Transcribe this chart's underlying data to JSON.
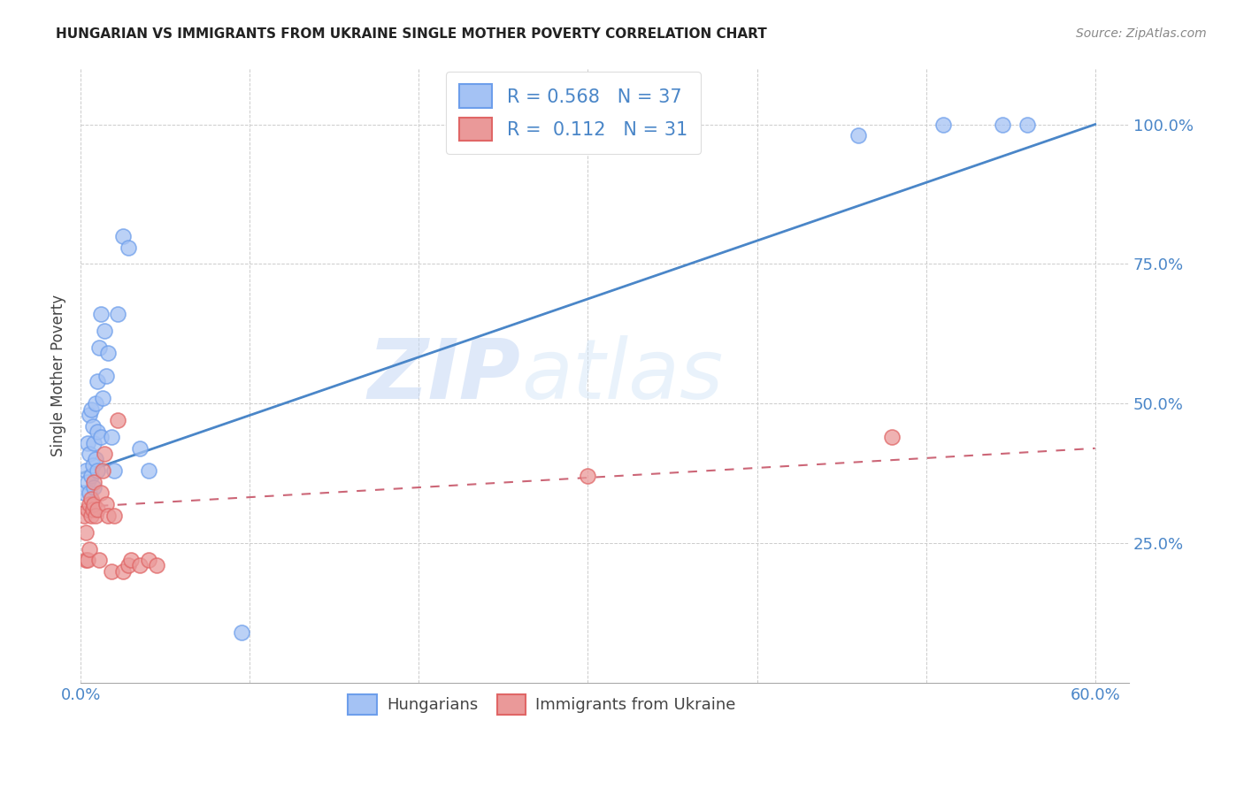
{
  "title": "HUNGARIAN VS IMMIGRANTS FROM UKRAINE SINGLE MOTHER POVERTY CORRELATION CHART",
  "source": "Source: ZipAtlas.com",
  "ylabel": "Single Mother Poverty",
  "legend_label1": "Hungarians",
  "legend_label2": "Immigrants from Ukraine",
  "R1": "0.568",
  "N1": "37",
  "R2": "0.112",
  "N2": "31",
  "blue_color": "#a4c2f4",
  "blue_edge_color": "#6d9eeb",
  "pink_color": "#ea9999",
  "pink_edge_color": "#e06666",
  "blue_line_color": "#4a86c8",
  "pink_line_color": "#cc6677",
  "watermark_zip": "ZIP",
  "watermark_atlas": "atlas",
  "blue_scatter_x": [
    0.002,
    0.003,
    0.004,
    0.004,
    0.005,
    0.005,
    0.005,
    0.006,
    0.006,
    0.007,
    0.007,
    0.008,
    0.008,
    0.009,
    0.009,
    0.01,
    0.01,
    0.01,
    0.011,
    0.012,
    0.012,
    0.013,
    0.014,
    0.015,
    0.016,
    0.018,
    0.02,
    0.022,
    0.025,
    0.028,
    0.035,
    0.04,
    0.095,
    0.46,
    0.51,
    0.545,
    0.56
  ],
  "blue_scatter_y": [
    0.34,
    0.38,
    0.36,
    0.43,
    0.34,
    0.41,
    0.48,
    0.37,
    0.49,
    0.39,
    0.46,
    0.35,
    0.43,
    0.4,
    0.5,
    0.45,
    0.54,
    0.38,
    0.6,
    0.44,
    0.66,
    0.51,
    0.63,
    0.55,
    0.59,
    0.44,
    0.38,
    0.66,
    0.8,
    0.78,
    0.42,
    0.38,
    0.09,
    0.98,
    1.0,
    1.0,
    1.0
  ],
  "pink_scatter_x": [
    0.002,
    0.003,
    0.003,
    0.004,
    0.004,
    0.005,
    0.005,
    0.006,
    0.006,
    0.007,
    0.008,
    0.008,
    0.009,
    0.01,
    0.011,
    0.012,
    0.013,
    0.014,
    0.015,
    0.016,
    0.018,
    0.02,
    0.022,
    0.025,
    0.028,
    0.03,
    0.035,
    0.04,
    0.045,
    0.3,
    0.48
  ],
  "pink_scatter_y": [
    0.3,
    0.22,
    0.27,
    0.31,
    0.22,
    0.32,
    0.24,
    0.3,
    0.33,
    0.31,
    0.32,
    0.36,
    0.3,
    0.31,
    0.22,
    0.34,
    0.38,
    0.41,
    0.32,
    0.3,
    0.2,
    0.3,
    0.47,
    0.2,
    0.21,
    0.22,
    0.21,
    0.22,
    0.21,
    0.37,
    0.44
  ],
  "blue_trend_x": [
    0.0,
    0.6
  ],
  "blue_trend_y": [
    0.375,
    1.0
  ],
  "pink_trend_x": [
    0.0,
    0.6
  ],
  "pink_trend_y": [
    0.315,
    0.42
  ],
  "xlim": [
    0.0,
    0.62
  ],
  "ylim": [
    0.0,
    1.1
  ],
  "ytick_vals": [
    0.25,
    0.5,
    0.75,
    1.0
  ],
  "ytick_labels": [
    "25.0%",
    "50.0%",
    "75.0%",
    "100.0%"
  ],
  "xtick_vals": [
    0.0,
    0.1,
    0.2,
    0.3,
    0.4,
    0.5,
    0.6
  ],
  "xtick_show": [
    "0.0%",
    "",
    "",
    "",
    "",
    "",
    "60.0%"
  ]
}
